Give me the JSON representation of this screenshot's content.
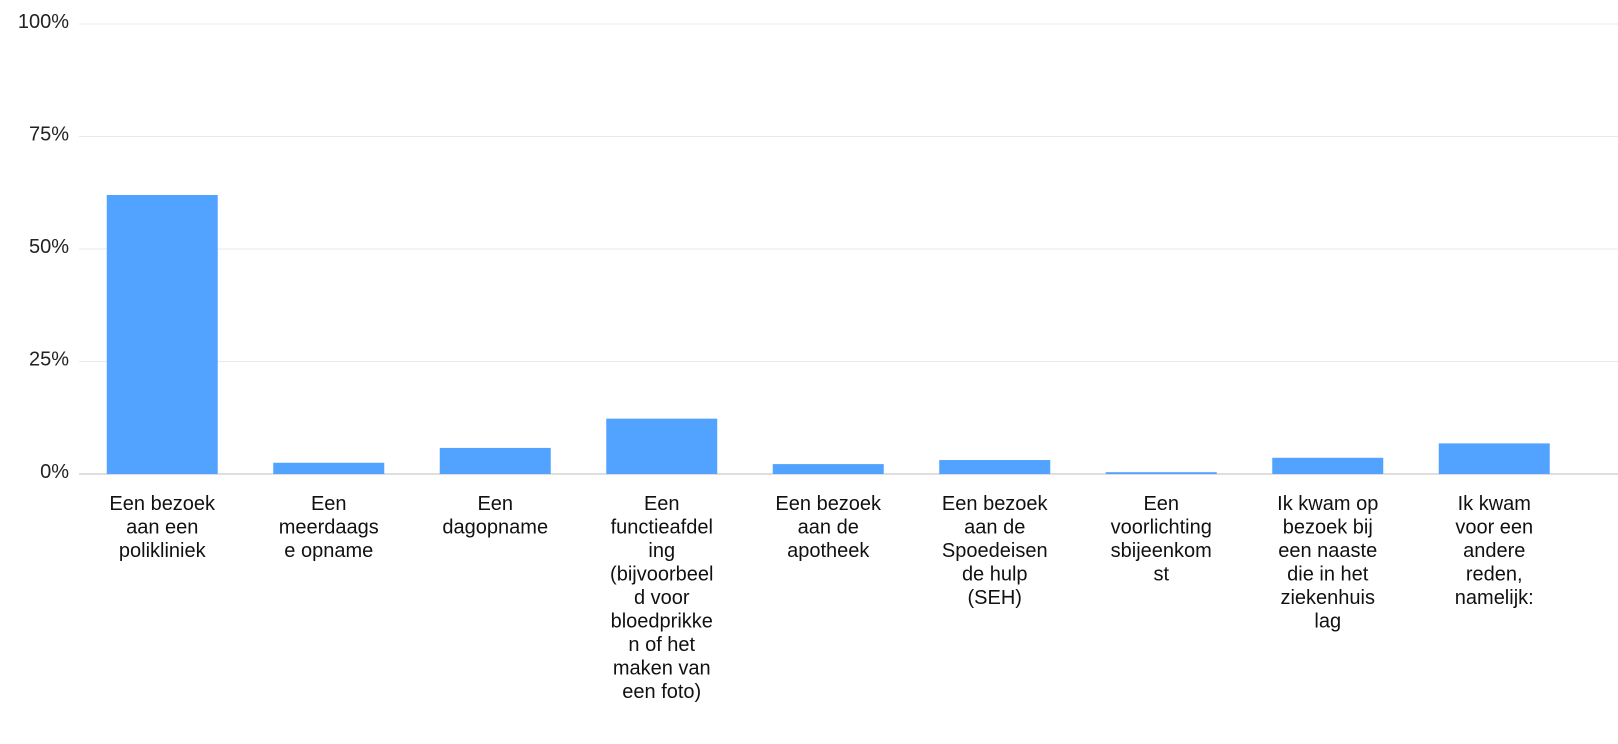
{
  "chart_data": {
    "type": "bar",
    "title": "",
    "xlabel": "",
    "ylabel": "",
    "ylim": [
      0,
      100
    ],
    "yticks": [
      0,
      25,
      50,
      75,
      100
    ],
    "ytick_labels": [
      "0%",
      "25%",
      "50%",
      "75%",
      "100%"
    ],
    "grid": true,
    "legend": "none",
    "bar_color": "#52a2ff",
    "categories": [
      [
        "Een bezoek",
        "aan een",
        "polikliniek"
      ],
      [
        "Een",
        "meerdaags",
        "e opname"
      ],
      [
        "Een",
        "dagopname"
      ],
      [
        "Een",
        "functieafdel",
        "ing",
        "(bijvoorbeel",
        "d voor",
        "bloedprikke",
        "n of het",
        "maken van",
        "een foto)"
      ],
      [
        "Een bezoek",
        "aan de",
        "apotheek"
      ],
      [
        "Een bezoek",
        "aan de",
        "Spoedeisen",
        "de hulp",
        "(SEH)"
      ],
      [
        "Een",
        "voorlichting",
        "sbijeenkom",
        "st"
      ],
      [
        "Ik kwam op",
        "bezoek bij",
        "een naaste",
        "die in het",
        "ziekenhuis",
        "lag"
      ],
      [
        "Ik kwam",
        "voor een",
        "andere",
        "reden,",
        "namelijk:"
      ]
    ],
    "values": [
      62,
      2.5,
      5.8,
      12.3,
      2.2,
      3.1,
      0.4,
      3.6,
      6.8
    ]
  }
}
